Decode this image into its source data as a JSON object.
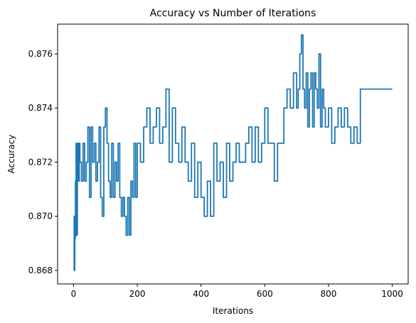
{
  "chart_data": {
    "type": "line",
    "title": "Accuracy vs Number of Iterations",
    "xlabel": "Iterations",
    "ylabel": "Accuracy",
    "xlim": [
      -50,
      1050
    ],
    "ylim": [
      0.8675,
      0.8771
    ],
    "xticks": [
      0,
      200,
      400,
      600,
      800,
      1000
    ],
    "xtick_labels": [
      "0",
      "200",
      "400",
      "600",
      "800",
      "1000"
    ],
    "yticks": [
      0.868,
      0.87,
      0.872,
      0.874,
      0.876
    ],
    "ytick_labels": [
      "0.868",
      "0.870",
      "0.872",
      "0.874",
      "0.876"
    ],
    "grid": false,
    "legend": false,
    "color": "#1f77b4",
    "series": [
      {
        "x": [
          0,
          2,
          4,
          6,
          8,
          10,
          12,
          14,
          16,
          18,
          20,
          25,
          30,
          35,
          40,
          45,
          50,
          55,
          60,
          65,
          70,
          75,
          80,
          85,
          90,
          95,
          100,
          105,
          110,
          115,
          120,
          125,
          130,
          135,
          140,
          145,
          150,
          155,
          160,
          165,
          170,
          175,
          180,
          185,
          190,
          195,
          200,
          210,
          220,
          230,
          240,
          250,
          260,
          270,
          280,
          290,
          300,
          310,
          320,
          330,
          340,
          350,
          360,
          370,
          380,
          390,
          400,
          410,
          420,
          430,
          440,
          450,
          460,
          470,
          480,
          490,
          500,
          510,
          520,
          530,
          540,
          550,
          560,
          570,
          580,
          590,
          600,
          610,
          620,
          630,
          640,
          650,
          660,
          670,
          680,
          690,
          700,
          705,
          710,
          715,
          720,
          725,
          730,
          735,
          740,
          745,
          750,
          755,
          760,
          765,
          770,
          775,
          780,
          785,
          790,
          800,
          810,
          820,
          830,
          840,
          850,
          860,
          870,
          880,
          890,
          900,
          920,
          950,
          1000
        ],
        "y": [
          0.87,
          0.868,
          0.8692,
          0.8713,
          0.8727,
          0.8693,
          0.872,
          0.8727,
          0.8713,
          0.8727,
          0.872,
          0.8713,
          0.8727,
          0.8713,
          0.872,
          0.8733,
          0.8707,
          0.8733,
          0.872,
          0.8727,
          0.8713,
          0.872,
          0.8733,
          0.8707,
          0.87,
          0.8733,
          0.874,
          0.8727,
          0.8713,
          0.8707,
          0.8727,
          0.8707,
          0.872,
          0.8713,
          0.8727,
          0.8707,
          0.87,
          0.8707,
          0.87,
          0.8693,
          0.8707,
          0.8693,
          0.8713,
          0.8707,
          0.8727,
          0.8707,
          0.8727,
          0.872,
          0.8733,
          0.874,
          0.8727,
          0.8733,
          0.874,
          0.8727,
          0.8733,
          0.8747,
          0.872,
          0.874,
          0.8727,
          0.872,
          0.8733,
          0.872,
          0.8713,
          0.8727,
          0.8707,
          0.872,
          0.8707,
          0.87,
          0.8713,
          0.87,
          0.8727,
          0.8713,
          0.872,
          0.8707,
          0.8727,
          0.8713,
          0.872,
          0.8727,
          0.872,
          0.872,
          0.8727,
          0.8733,
          0.872,
          0.8733,
          0.872,
          0.8727,
          0.874,
          0.8727,
          0.8727,
          0.8713,
          0.8727,
          0.8727,
          0.874,
          0.8747,
          0.874,
          0.8753,
          0.874,
          0.8747,
          0.876,
          0.8767,
          0.8747,
          0.874,
          0.8753,
          0.8733,
          0.8747,
          0.8753,
          0.8733,
          0.8753,
          0.8747,
          0.874,
          0.876,
          0.8733,
          0.8747,
          0.874,
          0.8733,
          0.874,
          0.8727,
          0.8733,
          0.874,
          0.8733,
          0.874,
          0.8733,
          0.8727,
          0.8733,
          0.8727,
          0.8747,
          0.8747,
          0.8747,
          0.8747
        ]
      }
    ]
  }
}
